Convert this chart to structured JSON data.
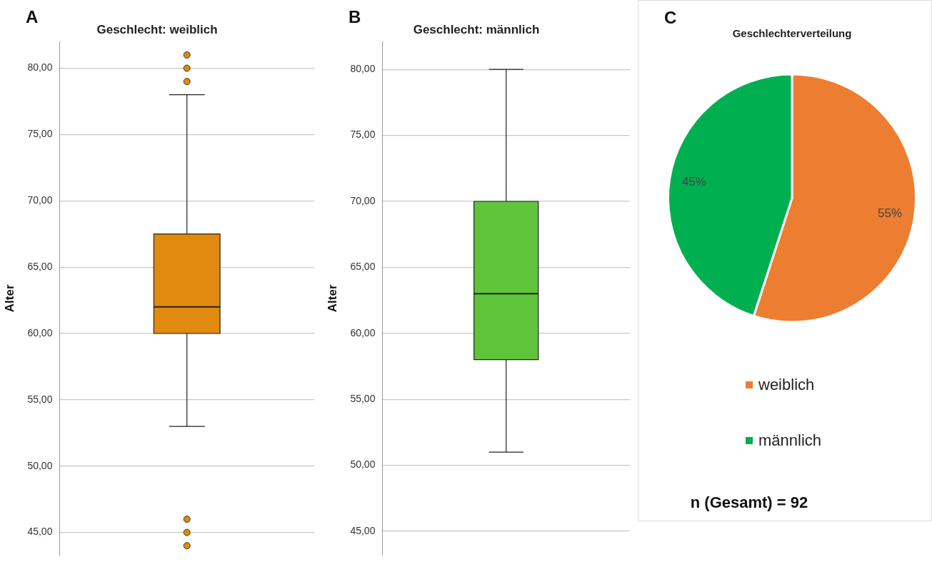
{
  "chart_data": [
    {
      "type": "box",
      "title": "Geschlecht: weiblich",
      "ylabel": "Alter",
      "categories": [
        null
      ],
      "color": "#e08a10",
      "annotations": [
        "A"
      ],
      "ylim": [
        43.3,
        82
      ],
      "yticks": [
        {
          "value": 45,
          "label": "45,00"
        },
        {
          "value": 50,
          "label": "50,00"
        },
        {
          "value": 55,
          "label": "55,00"
        },
        {
          "value": 60,
          "label": "60,00"
        },
        {
          "value": 65,
          "label": "65,00"
        },
        {
          "value": 70,
          "label": "70,00"
        },
        {
          "value": 75,
          "label": "75,00"
        },
        {
          "value": 80,
          "label": "80,00"
        }
      ],
      "grid": "y",
      "boxes": [
        {
          "low": 53,
          "q1": 60,
          "median": 62,
          "q3": 67.5,
          "high": 78,
          "outliers": [
            79,
            80,
            81,
            46,
            45,
            44
          ]
        }
      ]
    },
    {
      "type": "box",
      "title": "Geschlecht: männlich",
      "ylabel": "Alter",
      "categories": [
        null
      ],
      "color": "#5fc43a",
      "annotations": [
        "B"
      ],
      "ylim": [
        43.2,
        82.1
      ],
      "yticks": [
        {
          "value": 45,
          "label": "45,00"
        },
        {
          "value": 50,
          "label": "50,00"
        },
        {
          "value": 55,
          "label": "55,00"
        },
        {
          "value": 60,
          "label": "60,00"
        },
        {
          "value": 65,
          "label": "65,00"
        },
        {
          "value": 70,
          "label": "70,00"
        },
        {
          "value": 75,
          "label": "75,00"
        },
        {
          "value": 80,
          "label": "80,00"
        }
      ],
      "grid": "y",
      "boxes": [
        {
          "low": 51,
          "q1": 58,
          "median": 63,
          "q3": 70,
          "high": 80
        }
      ]
    },
    {
      "type": "pie",
      "title": "Geschlechterverteilung",
      "categories": [
        "weiblich",
        "männlich"
      ],
      "values": [
        55,
        45
      ],
      "colors": [
        "#ed7d31",
        "#00b050"
      ],
      "value_labels": [
        "55%",
        "45%"
      ],
      "legend": "bottom",
      "annotations": [
        "C",
        "n (Gesamt) = 92"
      ]
    }
  ]
}
